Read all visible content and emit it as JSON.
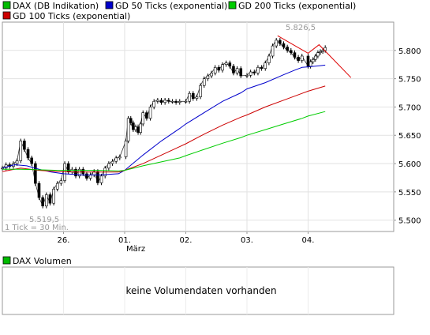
{
  "chart_data": {
    "type": "line",
    "legend": [
      {
        "name": "DAX (DB Indikation)",
        "color": "#00bb00"
      },
      {
        "name": "GD 50 Ticks (exponential)",
        "color": "#0000cc"
      },
      {
        "name": "GD 200 Ticks (exponential)",
        "color": "#00cc00"
      },
      {
        "name": "GD 100 Ticks (exponential)",
        "color": "#cc0000"
      }
    ],
    "x_ticks": [
      {
        "label": "26.",
        "t": 3.0
      },
      {
        "label": "01.",
        "t": 4.0
      },
      {
        "label": "02.",
        "t": 5.0
      },
      {
        "label": "03.",
        "t": 6.0
      },
      {
        "label": "04.",
        "t": 7.0
      }
    ],
    "x_sublabel": "März",
    "xlim": [
      2.0,
      8.4
    ],
    "ylim": [
      5480,
      5850
    ],
    "y_ticks": [
      5500,
      5550,
      5600,
      5650,
      5700,
      5750,
      5800
    ],
    "y_tick_labels": [
      "5.500",
      "5.550",
      "5.600",
      "5.650",
      "5.700",
      "5.750",
      "5.800"
    ],
    "grid": true,
    "annotations": {
      "high_label": "5.826,5",
      "low_label": "5.519,5",
      "interval_note": "1 Tick = 30 Min."
    },
    "series": [
      {
        "name": "DAX (DB Indikation)",
        "color": "#000000",
        "style": "ohlc",
        "x": [
          2.0,
          2.06,
          2.12,
          2.18,
          2.24,
          2.3,
          2.36,
          2.42,
          2.48,
          2.54,
          2.6,
          2.66,
          2.72,
          2.78,
          2.84,
          2.9,
          2.96,
          3.02,
          3.08,
          3.14,
          3.2,
          3.26,
          3.32,
          3.38,
          3.44,
          3.5,
          3.56,
          3.62,
          3.68,
          3.74,
          3.8,
          3.86,
          3.92,
          4.02,
          4.06,
          4.1,
          4.14,
          4.18,
          4.22,
          4.26,
          4.3,
          4.36,
          4.42,
          4.48,
          4.54,
          4.6,
          4.66,
          4.72,
          4.78,
          4.84,
          4.9,
          5.0,
          5.06,
          5.12,
          5.18,
          5.24,
          5.3,
          5.36,
          5.42,
          5.48,
          5.54,
          5.6,
          5.66,
          5.72,
          5.78,
          5.84,
          5.9,
          6.0,
          6.06,
          6.12,
          6.18,
          6.24,
          6.3,
          6.36,
          6.42,
          6.48,
          6.54,
          6.6,
          6.66,
          6.72,
          6.78,
          6.84,
          6.9,
          7.0,
          7.04,
          7.08,
          7.12,
          7.16,
          7.2,
          7.24,
          7.28
        ],
        "values": [
          5592,
          5598,
          5595,
          5600,
          5605,
          5640,
          5625,
          5610,
          5600,
          5565,
          5540,
          5525,
          5545,
          5530,
          5555,
          5565,
          5570,
          5600,
          5585,
          5590,
          5578,
          5590,
          5582,
          5574,
          5580,
          5586,
          5566,
          5578,
          5592,
          5600,
          5604,
          5610,
          5612,
          5640,
          5680,
          5672,
          5660,
          5665,
          5655,
          5670,
          5690,
          5680,
          5700,
          5710,
          5712,
          5708,
          5712,
          5710,
          5710,
          5708,
          5710,
          5710,
          5724,
          5715,
          5718,
          5738,
          5750,
          5755,
          5760,
          5770,
          5765,
          5775,
          5778,
          5772,
          5760,
          5768,
          5755,
          5756,
          5762,
          5760,
          5770,
          5768,
          5778,
          5790,
          5808,
          5818,
          5812,
          5806,
          5800,
          5796,
          5788,
          5782,
          5790,
          5772,
          5780,
          5784,
          5790,
          5796,
          5798,
          5800,
          5805
        ]
      },
      {
        "name": "GD 50 Ticks (exponential)",
        "color": "#0000cc",
        "x": [
          2.0,
          2.2,
          2.4,
          2.6,
          2.8,
          3.0,
          3.3,
          3.6,
          3.9,
          4.0,
          4.3,
          4.6,
          4.9,
          5.0,
          5.3,
          5.6,
          5.9,
          6.0,
          6.3,
          6.6,
          6.8,
          6.9,
          7.0,
          7.1,
          7.2,
          7.28
        ],
        "values": [
          5592,
          5598,
          5596,
          5590,
          5585,
          5582,
          5580,
          5580,
          5582,
          5588,
          5615,
          5640,
          5662,
          5670,
          5690,
          5710,
          5725,
          5732,
          5743,
          5757,
          5766,
          5770,
          5771,
          5772,
          5773,
          5774
        ]
      },
      {
        "name": "GD 100 Ticks (exponential)",
        "color": "#cc0000",
        "x": [
          2.0,
          2.3,
          2.6,
          2.9,
          3.2,
          3.6,
          3.9,
          4.0,
          4.3,
          4.6,
          4.9,
          5.0,
          5.3,
          5.6,
          5.9,
          6.0,
          6.3,
          6.6,
          6.9,
          7.0,
          7.28
        ],
        "values": [
          5586,
          5592,
          5588,
          5586,
          5585,
          5585,
          5585,
          5588,
          5600,
          5615,
          5630,
          5635,
          5652,
          5668,
          5682,
          5686,
          5700,
          5712,
          5724,
          5728,
          5737
        ]
      },
      {
        "name": "GD 200 Ticks (exponential)",
        "color": "#00cc00",
        "x": [
          2.0,
          2.3,
          2.6,
          2.9,
          3.2,
          3.6,
          3.9,
          4.0,
          4.3,
          4.6,
          4.9,
          5.0,
          5.3,
          5.6,
          5.9,
          6.0,
          6.3,
          6.6,
          6.9,
          7.0,
          7.28
        ],
        "values": [
          5590,
          5590,
          5589,
          5588,
          5588,
          5588,
          5587,
          5588,
          5596,
          5603,
          5610,
          5614,
          5625,
          5636,
          5646,
          5650,
          5660,
          5670,
          5680,
          5684,
          5692
        ]
      },
      {
        "name": "Trend",
        "color": "#dd0000",
        "x": [
          6.5,
          7.0,
          7.18,
          7.7
        ],
        "values": [
          5826,
          5795,
          5810,
          5752
        ]
      }
    ]
  },
  "volume_panel": {
    "legend_label": "DAX Volumen",
    "legend_color": "#00bb00",
    "message": "keine Volumendaten vorhanden"
  }
}
